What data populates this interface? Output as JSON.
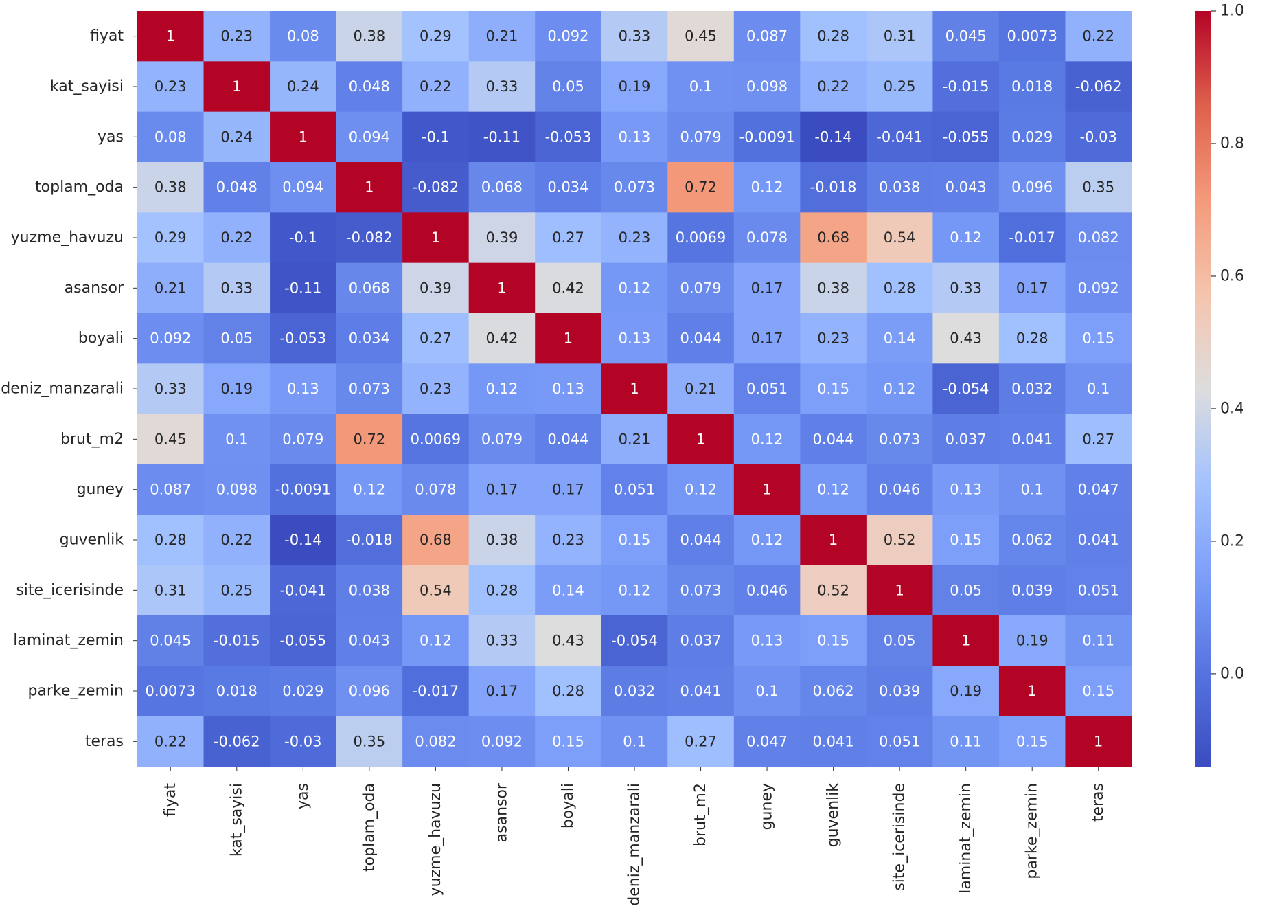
{
  "chart_data": {
    "type": "heatmap",
    "title": "",
    "xlabel": "",
    "ylabel": "",
    "row_labels": [
      "fiyat",
      "kat_sayisi",
      "yas",
      "toplam_oda",
      "yuzme_havuzu",
      "asansor",
      "boyali",
      "deniz_manzarali",
      "brut_m2",
      "guney",
      "guvenlik",
      "site_icerisinde",
      "laminat_zemin",
      "parke_zemin",
      "teras"
    ],
    "col_labels": [
      "fiyat",
      "kat_sayisi",
      "yas",
      "toplam_oda",
      "yuzme_havuzu",
      "asansor",
      "boyali",
      "deniz_manzarali",
      "brut_m2",
      "guney",
      "guvenlik",
      "site_icerisinde",
      "laminat_zemin",
      "parke_zemin",
      "teras"
    ],
    "values": [
      [
        "1",
        "0.23",
        "0.08",
        "0.38",
        "0.29",
        "0.21",
        "0.092",
        "0.33",
        "0.45",
        "0.087",
        "0.28",
        "0.31",
        "0.045",
        "0.0073",
        "0.22"
      ],
      [
        "0.23",
        "1",
        "0.24",
        "0.048",
        "0.22",
        "0.33",
        "0.05",
        "0.19",
        "0.1",
        "0.098",
        "0.22",
        "0.25",
        "-0.015",
        "0.018",
        "-0.062"
      ],
      [
        "0.08",
        "0.24",
        "1",
        "0.094",
        "-0.1",
        "-0.11",
        "-0.053",
        "0.13",
        "0.079",
        "-0.0091",
        "-0.14",
        "-0.041",
        "-0.055",
        "0.029",
        "-0.03"
      ],
      [
        "0.38",
        "0.048",
        "0.094",
        "1",
        "-0.082",
        "0.068",
        "0.034",
        "0.073",
        "0.72",
        "0.12",
        "-0.018",
        "0.038",
        "0.043",
        "0.096",
        "0.35"
      ],
      [
        "0.29",
        "0.22",
        "-0.1",
        "-0.082",
        "1",
        "0.39",
        "0.27",
        "0.23",
        "0.0069",
        "0.078",
        "0.68",
        "0.54",
        "0.12",
        "-0.017",
        "0.082"
      ],
      [
        "0.21",
        "0.33",
        "-0.11",
        "0.068",
        "0.39",
        "1",
        "0.42",
        "0.12",
        "0.079",
        "0.17",
        "0.38",
        "0.28",
        "0.33",
        "0.17",
        "0.092"
      ],
      [
        "0.092",
        "0.05",
        "-0.053",
        "0.034",
        "0.27",
        "0.42",
        "1",
        "0.13",
        "0.044",
        "0.17",
        "0.23",
        "0.14",
        "0.43",
        "0.28",
        "0.15"
      ],
      [
        "0.33",
        "0.19",
        "0.13",
        "0.073",
        "0.23",
        "0.12",
        "0.13",
        "1",
        "0.21",
        "0.051",
        "0.15",
        "0.12",
        "-0.054",
        "0.032",
        "0.1"
      ],
      [
        "0.45",
        "0.1",
        "0.079",
        "0.72",
        "0.0069",
        "0.079",
        "0.044",
        "0.21",
        "1",
        "0.12",
        "0.044",
        "0.073",
        "0.037",
        "0.041",
        "0.27"
      ],
      [
        "0.087",
        "0.098",
        "-0.0091",
        "0.12",
        "0.078",
        "0.17",
        "0.17",
        "0.051",
        "0.12",
        "1",
        "0.12",
        "0.046",
        "0.13",
        "0.1",
        "0.047"
      ],
      [
        "0.28",
        "0.22",
        "-0.14",
        "-0.018",
        "0.68",
        "0.38",
        "0.23",
        "0.15",
        "0.044",
        "0.12",
        "1",
        "0.52",
        "0.15",
        "0.062",
        "0.041"
      ],
      [
        "0.31",
        "0.25",
        "-0.041",
        "0.038",
        "0.54",
        "0.28",
        "0.14",
        "0.12",
        "0.073",
        "0.046",
        "0.52",
        "1",
        "0.05",
        "0.039",
        "0.051"
      ],
      [
        "0.045",
        "-0.015",
        "-0.055",
        "0.043",
        "0.12",
        "0.33",
        "0.43",
        "-0.054",
        "0.037",
        "0.13",
        "0.15",
        "0.05",
        "1",
        "0.19",
        "0.11"
      ],
      [
        "0.0073",
        "0.018",
        "0.029",
        "0.096",
        "-0.017",
        "0.17",
        "0.28",
        "0.032",
        "0.041",
        "0.1",
        "0.062",
        "0.039",
        "0.19",
        "1",
        "0.15"
      ],
      [
        "0.22",
        "-0.062",
        "-0.03",
        "0.35",
        "0.082",
        "0.092",
        "0.15",
        "0.1",
        "0.27",
        "0.047",
        "0.041",
        "0.051",
        "0.11",
        "0.15",
        "1"
      ]
    ],
    "colormap": "coolwarm",
    "vmin": -0.14,
    "vmax": 1.0,
    "colorbar": {
      "ticks": [
        0.0,
        0.2,
        0.4,
        0.6,
        0.8,
        1.0
      ],
      "tick_labels": [
        "0.0",
        "0.2",
        "0.4",
        "0.6",
        "0.8",
        "1.0"
      ]
    },
    "annotations_on": true
  }
}
